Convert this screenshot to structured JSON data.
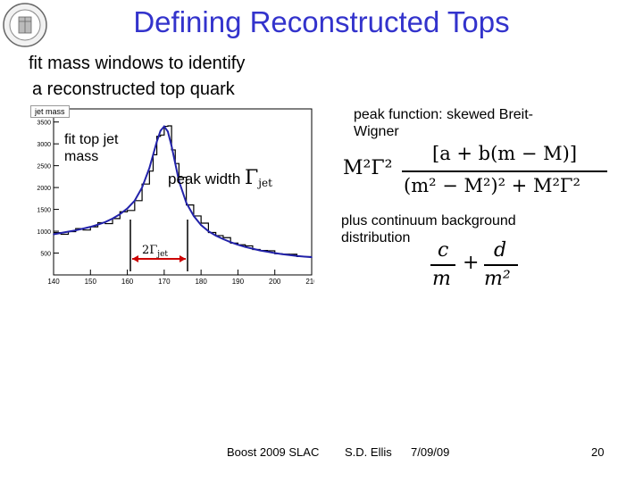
{
  "slide": {
    "title": "Defining Reconstructed Tops",
    "subtitle_line1": "fit mass windows to identify",
    "subtitle_line2": "a reconstructed top quark"
  },
  "plot": {
    "title_box": "jet mass",
    "fit_label_line1": "fit top jet",
    "fit_label_line2": "mass",
    "peak_width_label": "peak width",
    "gamma_symbol": "Γ",
    "gamma_sub": "jet",
    "two_gamma_label": "2Γ",
    "two_gamma_sub": "jet"
  },
  "annotations": {
    "peak_function_line1": "peak function: skewed Breit-",
    "peak_function_line2": "Wigner",
    "continuum_line1": "plus continuum background",
    "continuum_line2": "distribution"
  },
  "formula": {
    "bw_lhs": "M²Γ²",
    "bw_num": "[a + b(m − M)]",
    "bw_den": "(m² − M²)² + M²Γ²",
    "c": "c",
    "m": "m",
    "plus": "+",
    "d": "d",
    "m2": "m²"
  },
  "footer": {
    "conference": "Boost 2009  SLAC",
    "author": "S.D. Ellis",
    "date": "7/09/09",
    "page": "20"
  },
  "chart_data": {
    "type": "line",
    "title": "jet mass",
    "x_ticks": [
      "140",
      "150",
      "160",
      "170",
      "180",
      "190",
      "200",
      "210"
    ],
    "y_ticks": [
      "500",
      "1000",
      "1500",
      "2000",
      "2500",
      "3000",
      "3500"
    ],
    "xlim": [
      140,
      210
    ],
    "ylim": [
      0,
      3800
    ],
    "grid": false,
    "series": [
      {
        "x": [
          140,
          142,
          144,
          146,
          148,
          150,
          152,
          154,
          156,
          158,
          160,
          162,
          164,
          166,
          167,
          168,
          169,
          170,
          171,
          172,
          173,
          174,
          176,
          178,
          180,
          182,
          184,
          186,
          188,
          190,
          192,
          194,
          196,
          198,
          200,
          202,
          204,
          206,
          208,
          210
        ],
        "values": [
          930,
          960,
          990,
          1020,
          1060,
          1100,
          1150,
          1210,
          1290,
          1390,
          1520,
          1700,
          2000,
          2450,
          2750,
          3050,
          3300,
          3400,
          3280,
          2950,
          2550,
          2150,
          1650,
          1350,
          1140,
          1000,
          900,
          820,
          750,
          690,
          640,
          600,
          560,
          530,
          500,
          475,
          455,
          435,
          420,
          405
        ]
      }
    ]
  }
}
